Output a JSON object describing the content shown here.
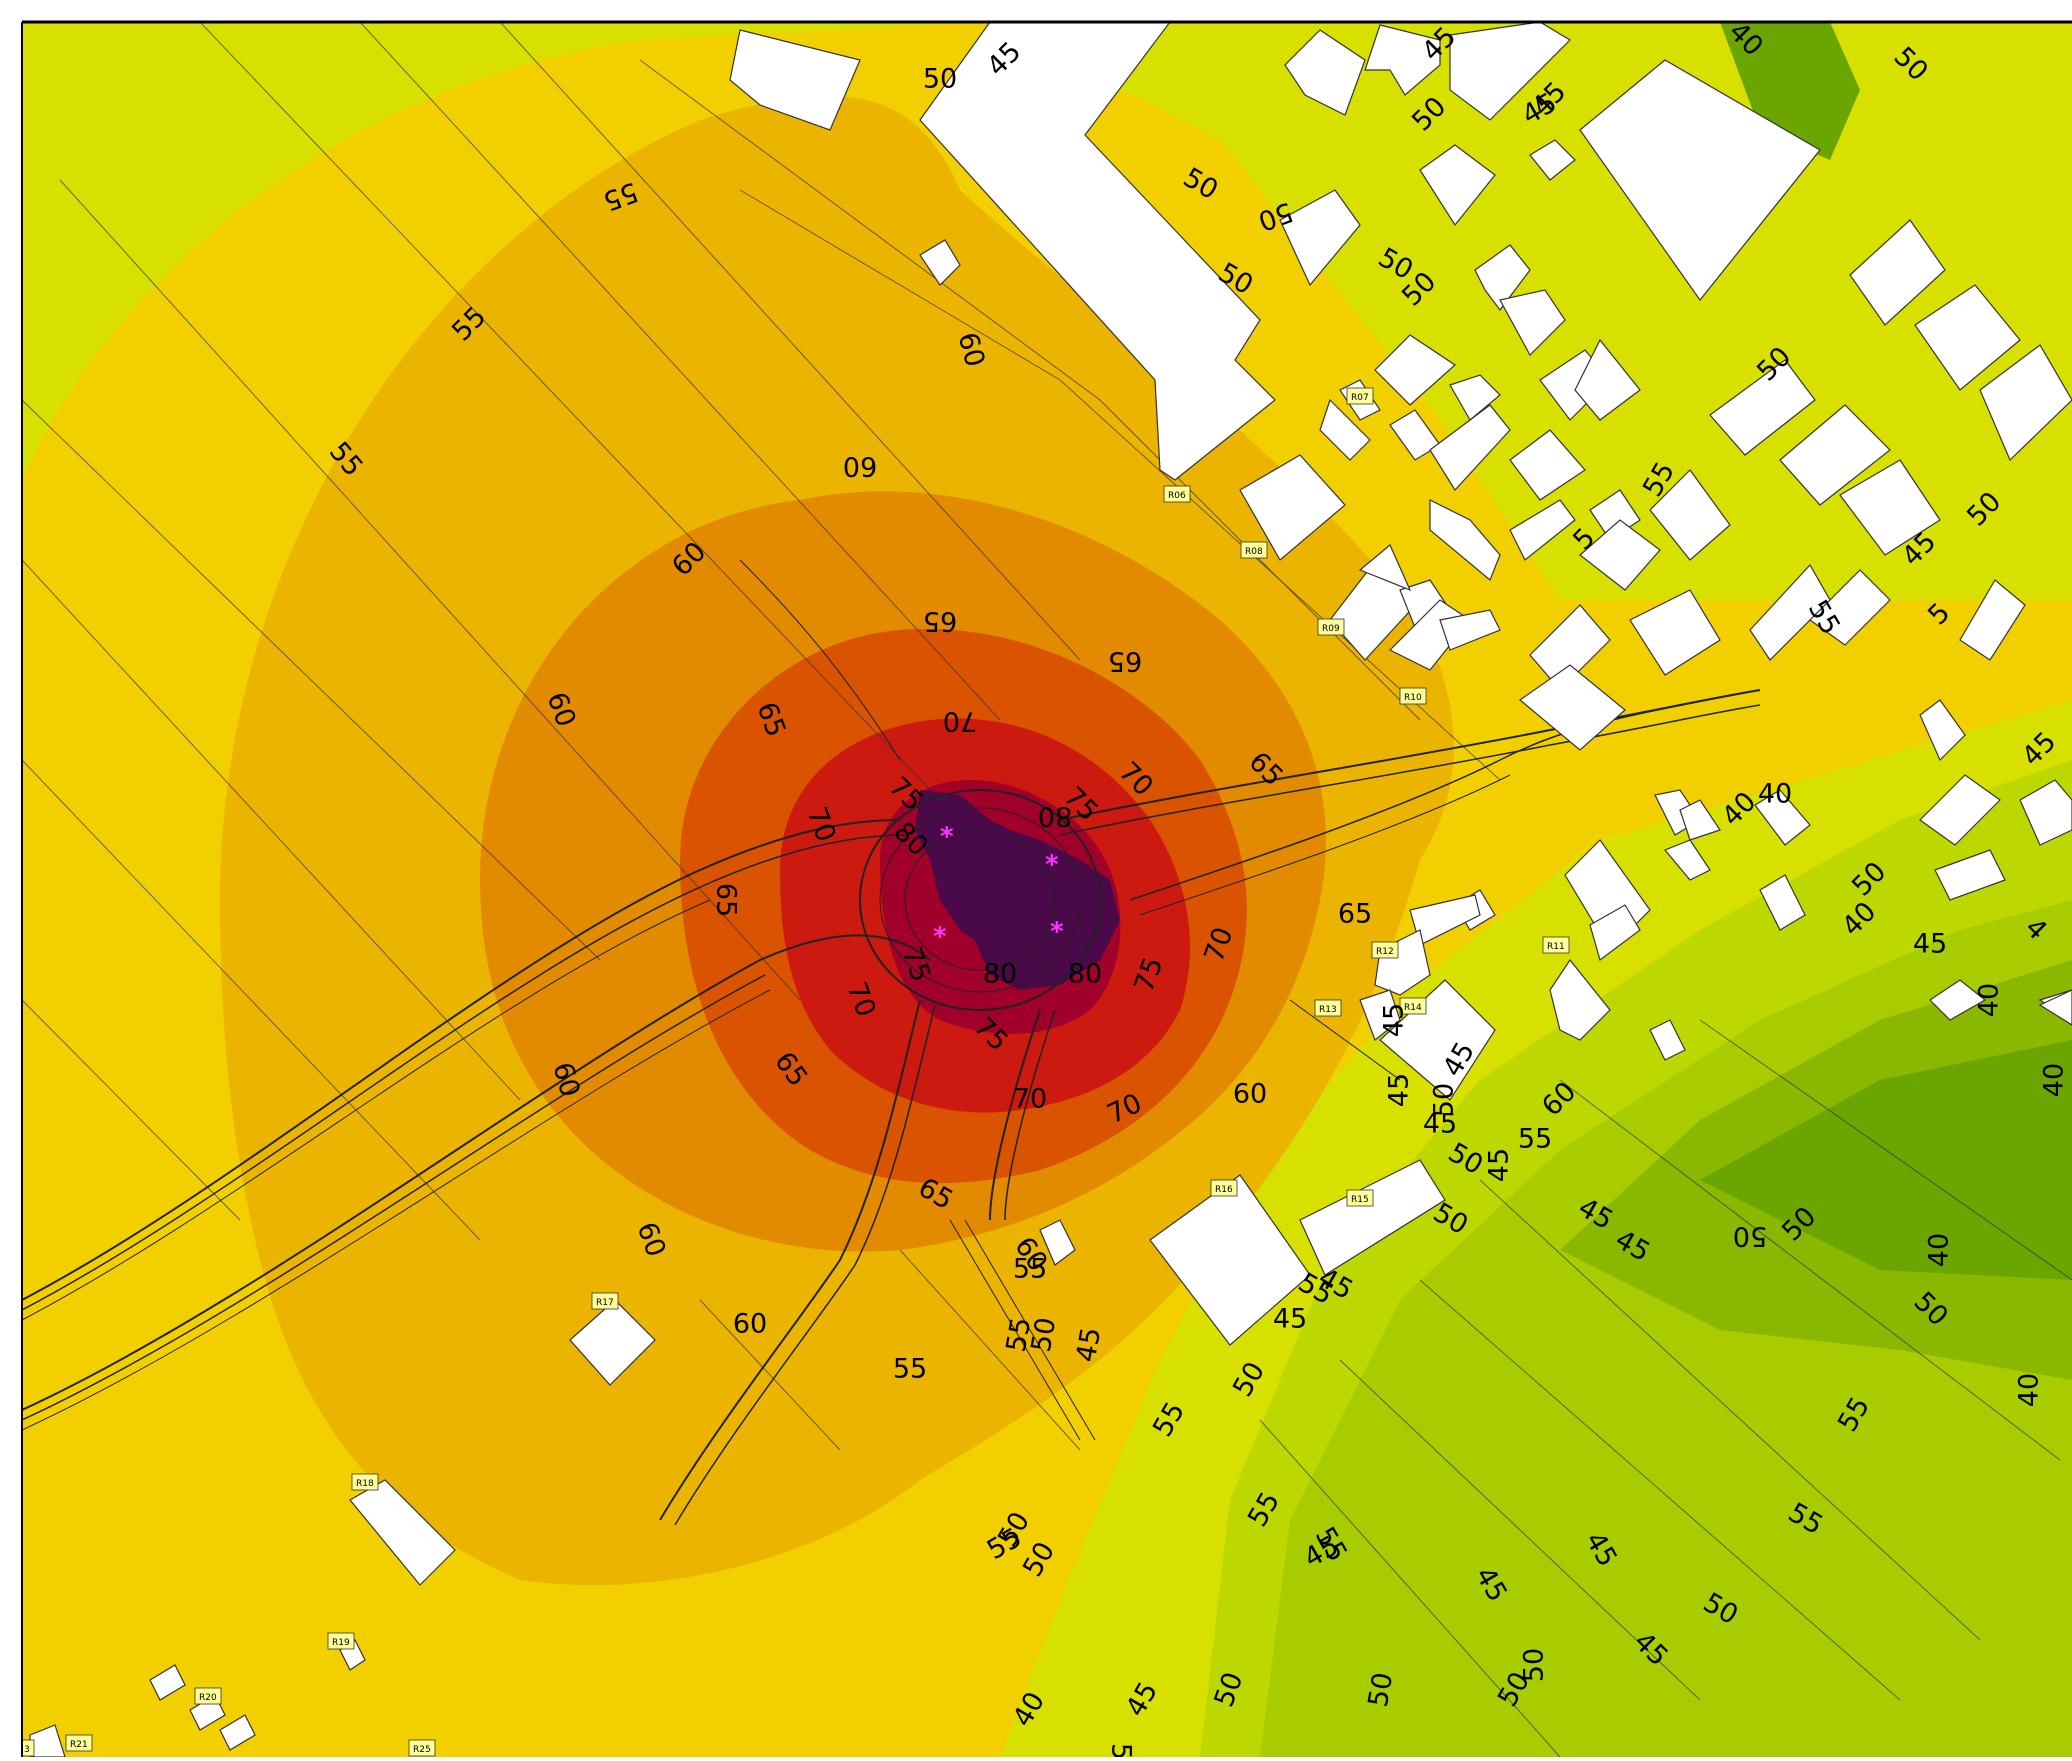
{
  "map": {
    "legend_levels_db": [
      40,
      45,
      50,
      55,
      60,
      65,
      70,
      75,
      80
    ],
    "colors": {
      "bg": "#c8de00",
      "l50": "#d8e000",
      "l55": "#f2d000",
      "l60": "#ebb400",
      "l65": "#e28a00",
      "l70": "#d95300",
      "l75": "#cc1a10",
      "l80": "#a0002a",
      "l85": "#4a0a4a",
      "green45": "#a9cc00",
      "green40": "#8ab800",
      "green35": "#6aa500",
      "source": "#ff33ff",
      "building": "#ffffff",
      "label_bg": "#ffff99"
    },
    "sources": [
      {
        "id": "S1",
        "symbol": "*"
      },
      {
        "id": "S2",
        "symbol": "*"
      },
      {
        "id": "S3",
        "symbol": "*"
      },
      {
        "id": "S4",
        "symbol": "*"
      }
    ],
    "receivers": [
      "R06",
      "R07",
      "R08",
      "R09",
      "R10",
      "R11",
      "R12",
      "R13",
      "R14",
      "R15",
      "R16",
      "R17",
      "R18",
      "R19",
      "R20",
      "R21",
      "R25",
      "3"
    ],
    "contour_labels": [
      "55",
      "50",
      "45",
      "45",
      "40",
      "50",
      "45",
      "50",
      "50",
      "45",
      "50",
      "60",
      "55",
      "55",
      "60",
      "50",
      "50",
      "50",
      "60",
      "60",
      "65",
      "65",
      "65",
      "70",
      "70",
      "65",
      "75",
      "75",
      "70",
      "80",
      "80",
      "65",
      "70",
      "75",
      "80",
      "75",
      "80",
      "70",
      "75",
      "70",
      "70",
      "65",
      "60",
      "60",
      "65",
      "65",
      "60",
      "55",
      "60",
      "60",
      "55",
      "55",
      "55",
      "50",
      "45",
      "55",
      "50",
      "45",
      "45",
      "50",
      "50",
      "45",
      "45",
      "45",
      "45",
      "50",
      "45",
      "45",
      "50",
      "50",
      "55",
      "50",
      "45",
      "50",
      "55",
      "55",
      "50",
      "50",
      "50",
      "45",
      "40",
      "55",
      "50",
      "45",
      "45",
      "45",
      "50",
      "50",
      "40",
      "40",
      "45",
      "4",
      "5",
      "5",
      "50",
      "55",
      "55",
      "50",
      "45",
      "40",
      "40",
      "50",
      "55",
      "60",
      "55",
      "45",
      "40",
      "50",
      "45",
      "40",
      "40"
    ]
  }
}
